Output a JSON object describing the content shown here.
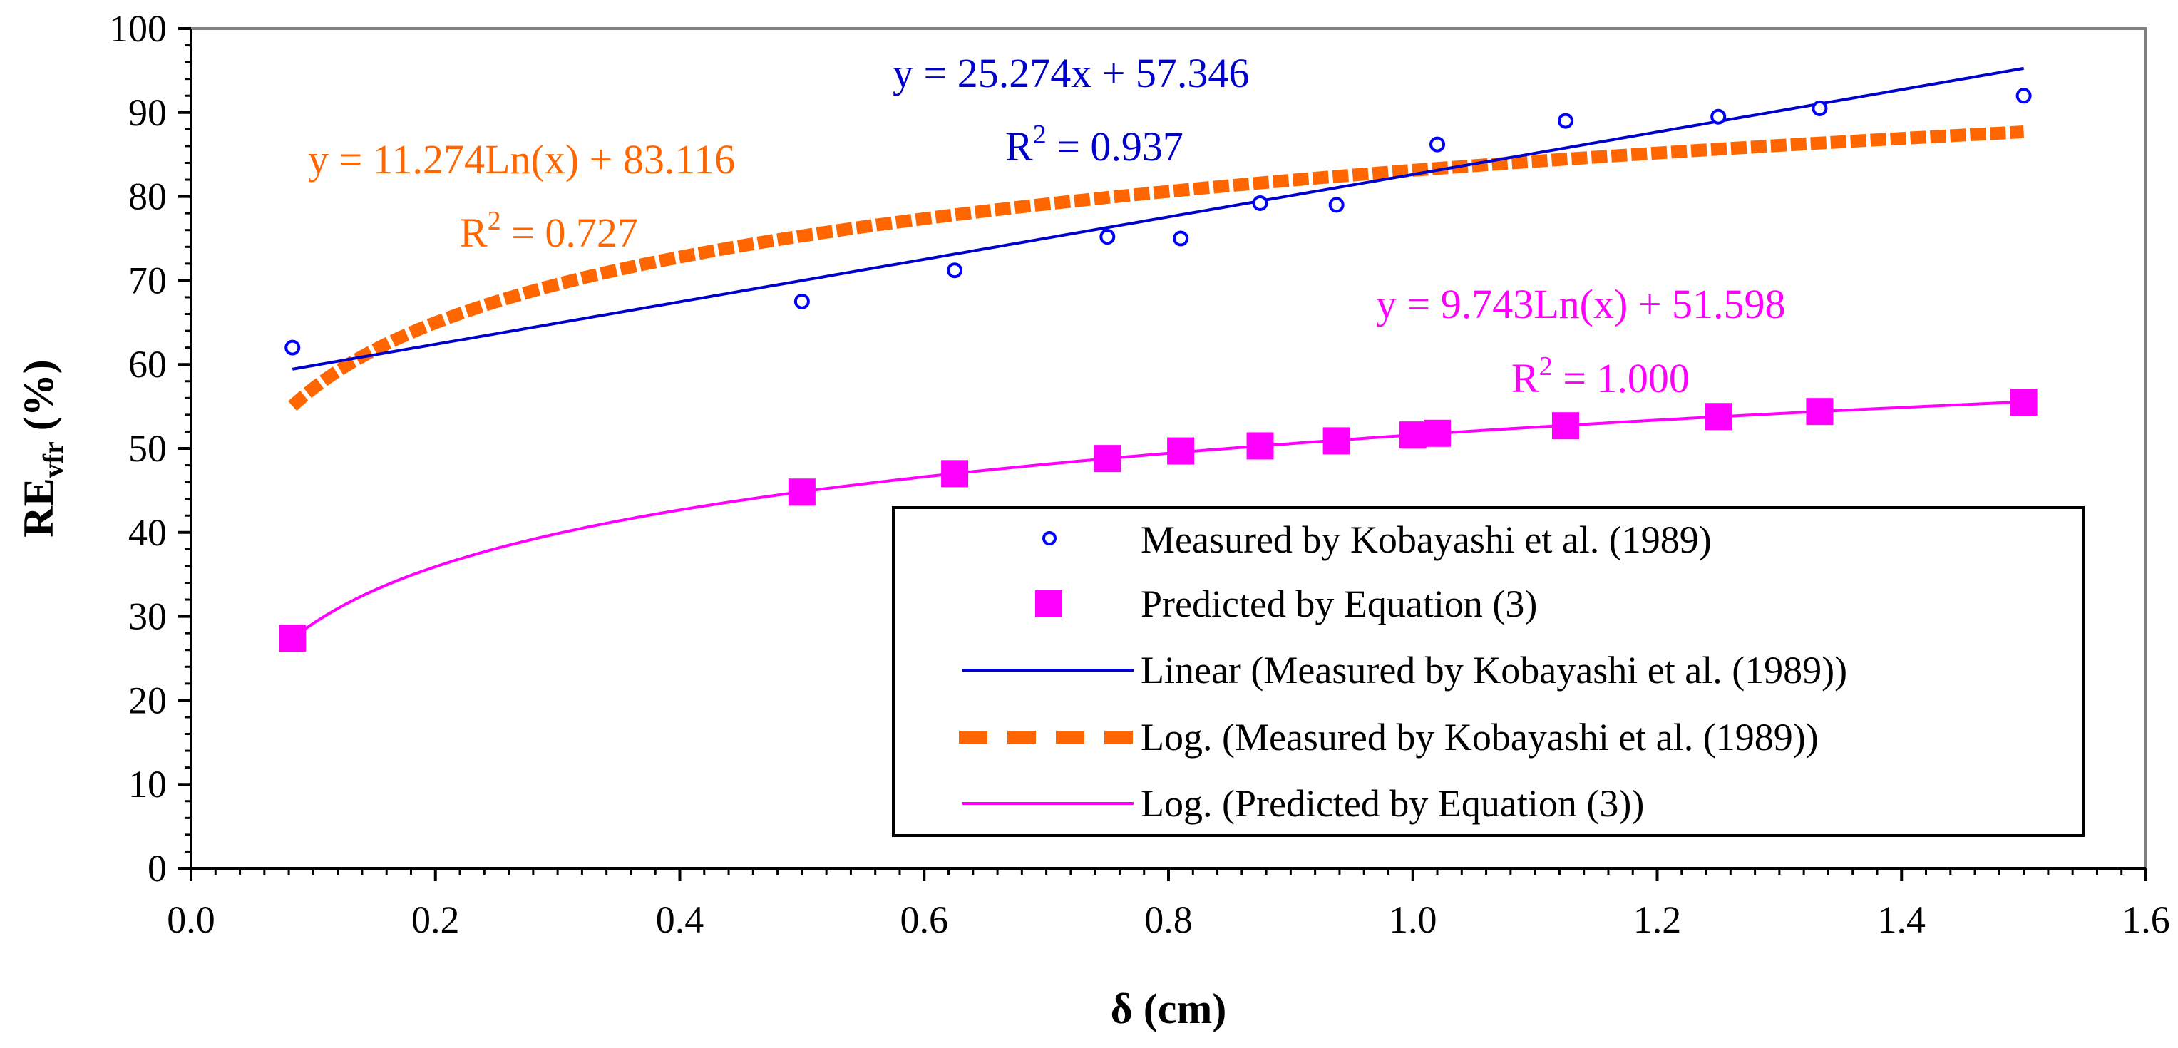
{
  "chart_data": {
    "type": "scatter",
    "title": "",
    "xlabel": "δ (cm)",
    "ylabel": {
      "main": "RE",
      "sub": "vfr",
      "suffix": " (%)"
    },
    "xlim": [
      0.0,
      1.6
    ],
    "ylim": [
      0,
      100
    ],
    "x_ticks": [
      0.0,
      0.2,
      0.4,
      0.6,
      0.8,
      1.0,
      1.2,
      1.4,
      1.6
    ],
    "x_tick_labels": [
      "0.0",
      "0.2",
      "0.4",
      "0.6",
      "0.8",
      "1.0",
      "1.2",
      "1.4",
      "1.6"
    ],
    "y_ticks": [
      0,
      10,
      20,
      30,
      40,
      50,
      60,
      70,
      80,
      90,
      100
    ],
    "y_tick_labels": [
      "0",
      "10",
      "20",
      "30",
      "40",
      "50",
      "60",
      "70",
      "80",
      "90",
      "100"
    ],
    "grid": false,
    "legend_position": "bottom-right",
    "colors": {
      "measured": "#0000ff",
      "predicted": "#ff00ff",
      "log_measured": "#ff6600",
      "linear": "#0000cc",
      "log_predicted": "#ff00ff"
    },
    "series": [
      {
        "name": "Measured by Kobayashi et al. (1989)",
        "kind": "points",
        "marker": "circle",
        "x": [
          0.083,
          0.5,
          0.625,
          0.75,
          0.81,
          0.875,
          0.9375,
          1.02,
          1.125,
          1.25,
          1.333,
          1.5
        ],
        "y": [
          62.0,
          67.5,
          71.2,
          75.2,
          75.0,
          79.2,
          79.0,
          86.2,
          89.0,
          89.5,
          90.5,
          92.0
        ]
      },
      {
        "name": "Predicted by Equation (3)",
        "kind": "points",
        "marker": "square",
        "x": [
          0.083,
          0.5,
          0.625,
          0.75,
          0.81,
          0.875,
          0.9375,
          1.0,
          1.02,
          1.125,
          1.25,
          1.333,
          1.5
        ],
        "y": [
          27.4,
          44.8,
          47.0,
          48.8,
          49.7,
          50.3,
          50.9,
          51.6,
          51.8,
          52.7,
          53.8,
          54.4,
          55.5
        ]
      },
      {
        "name": "Linear (Measured by Kobayashi et al. (1989))",
        "kind": "trend",
        "model": "linear",
        "coefficients": {
          "slope": 25.274,
          "intercept": 57.346
        },
        "x_range": [
          0.083,
          1.5
        ]
      },
      {
        "name": "Log. (Measured by Kobayashi et al. (1989))",
        "kind": "trend",
        "model": "log",
        "coefficients": {
          "a": 11.274,
          "b": 83.116
        },
        "x_range": [
          0.083,
          1.5
        ]
      },
      {
        "name": "Log. (Predicted by Equation (3))",
        "kind": "trend",
        "model": "log",
        "coefficients": {
          "a": 9.743,
          "b": 51.598
        },
        "x_range": [
          0.083,
          1.5
        ]
      }
    ],
    "annotations": [
      {
        "id": "linear",
        "equation": "y = 25.274x + 57.346",
        "r2_label": "R",
        "r2_sup": "2",
        "r2_value": " = 0.937"
      },
      {
        "id": "log_measured",
        "equation": "y = 11.274Ln(x) + 83.116",
        "r2_label": "R",
        "r2_sup": "2",
        "r2_value": " = 0.727"
      },
      {
        "id": "log_predicted",
        "equation": "y = 9.743Ln(x) + 51.598",
        "r2_label": "R",
        "r2_sup": "2",
        "r2_value": " = 1.000"
      }
    ]
  }
}
